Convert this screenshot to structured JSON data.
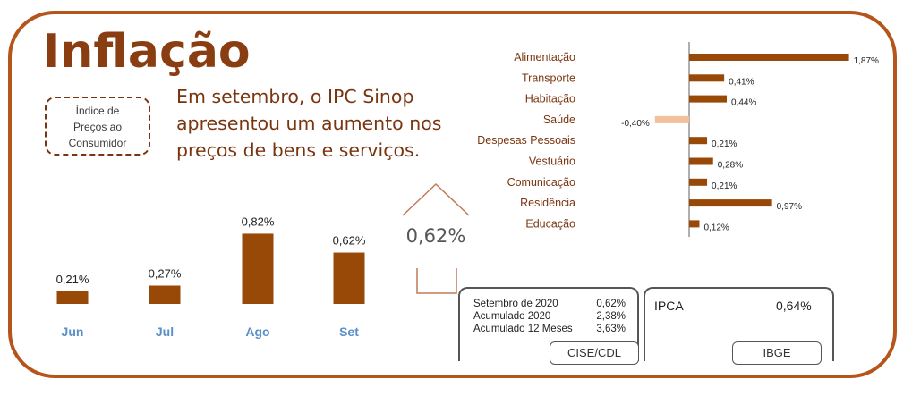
{
  "title": "Inflação",
  "index_box": [
    "Índice de",
    "Preços ao",
    "Consumidor"
  ],
  "headline": [
    "Em setembro, o IPC Sinop",
    "apresentou um aumento  nos",
    "preços de bens e serviços."
  ],
  "current_value": "0,62%",
  "cise_box": {
    "rows": [
      {
        "label": "Setembro  de 2020",
        "value": "0,62%"
      },
      {
        "label": "Acumulado 2020",
        "value": "2,38%"
      },
      {
        "label": "Acumulado 12 Meses",
        "value": "3,63%"
      }
    ],
    "source": "CISE/CDL"
  },
  "ibge_box": {
    "label": "IPCA",
    "value": "0,64%",
    "source": "IBGE"
  },
  "colors": {
    "brand": "#8a3d10",
    "bar": "#984807",
    "negative": "#f2c09a",
    "month_label": "#5b8fc7"
  },
  "chart_data": [
    {
      "type": "bar",
      "categories": [
        "Jun",
        "Jul",
        "Ago",
        "Set"
      ],
      "values": [
        0.21,
        0.27,
        0.82,
        0.62
      ],
      "labels": [
        "0,21%",
        "0,27%",
        "0,82%",
        "0,62%"
      ],
      "ylim": [
        0,
        0.9
      ],
      "grid": false
    },
    {
      "type": "bar",
      "orientation": "horizontal",
      "categories": [
        "Alimentação",
        "Transporte",
        "Habitação",
        "Saúde",
        "Despesas Pessoais",
        "Vestuário",
        "Comunicação",
        "Residência",
        "Educação"
      ],
      "values": [
        1.87,
        0.41,
        0.44,
        -0.4,
        0.21,
        0.28,
        0.21,
        0.97,
        0.12
      ],
      "labels": [
        "1,87%",
        "0,41%",
        "0,44%",
        "-0,40%",
        "0,21%",
        "0,28%",
        "0,21%",
        "0,97%",
        "0,12%"
      ],
      "xlim": [
        -0.45,
        1.95
      ],
      "grid": false
    }
  ]
}
